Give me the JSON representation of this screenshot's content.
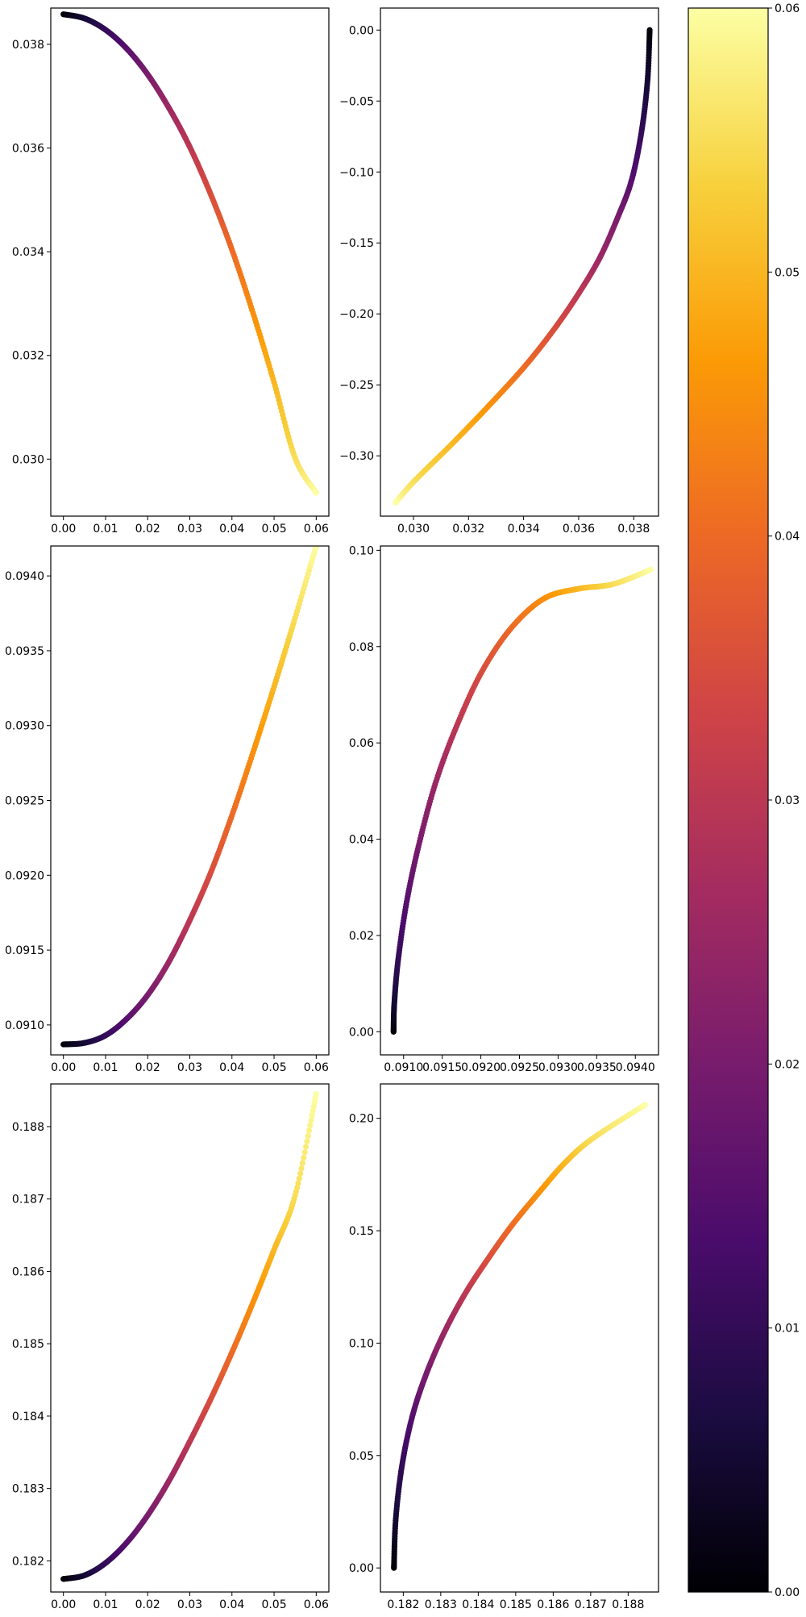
{
  "colormap": {
    "name": "inferno",
    "stops": [
      "#000004",
      "#1b0c41",
      "#4a0c6b",
      "#781c6d",
      "#a52c60",
      "#cf4446",
      "#ed6925",
      "#fb9b06",
      "#f7d13d",
      "#fcffa4"
    ]
  },
  "colorbar": {
    "range": [
      0,
      0.06
    ],
    "ticks": [
      0.0,
      0.01,
      0.02,
      0.03,
      0.04,
      0.05,
      0.06
    ],
    "tick_labels": [
      "0.00",
      "0.01",
      "0.02",
      "0.03",
      "0.04",
      "0.05",
      "0.06"
    ]
  },
  "chart_data": [
    {
      "type": "scatter",
      "title": "",
      "xlabel": "",
      "ylabel": "",
      "xlim": [
        -0.003,
        0.063
      ],
      "ylim": [
        0.0289,
        0.0387
      ],
      "xticks": [
        0.0,
        0.01,
        0.02,
        0.03,
        0.04,
        0.05,
        0.06
      ],
      "xtick_labels": [
        "0.00",
        "0.01",
        "0.02",
        "0.03",
        "0.04",
        "0.05",
        "0.06"
      ],
      "yticks": [
        0.03,
        0.032,
        0.034,
        0.036,
        0.038
      ],
      "ytick_labels": [
        "0.030",
        "0.032",
        "0.034",
        "0.036",
        "0.038"
      ],
      "points": [
        {
          "x": 0.0,
          "y": 0.03858,
          "c": 0.0
        },
        {
          "x": 0.005,
          "y": 0.0385,
          "c": 0.005
        },
        {
          "x": 0.01,
          "y": 0.03828,
          "c": 0.01
        },
        {
          "x": 0.015,
          "y": 0.03792,
          "c": 0.015
        },
        {
          "x": 0.02,
          "y": 0.03742,
          "c": 0.02
        },
        {
          "x": 0.025,
          "y": 0.03678,
          "c": 0.025
        },
        {
          "x": 0.03,
          "y": 0.03602,
          "c": 0.03
        },
        {
          "x": 0.035,
          "y": 0.0351,
          "c": 0.035
        },
        {
          "x": 0.04,
          "y": 0.03404,
          "c": 0.04
        },
        {
          "x": 0.045,
          "y": 0.03282,
          "c": 0.045
        },
        {
          "x": 0.05,
          "y": 0.03148,
          "c": 0.05
        },
        {
          "x": 0.055,
          "y": 0.03002,
          "c": 0.055
        },
        {
          "x": 0.06,
          "y": 0.02935,
          "c": 0.06
        }
      ]
    },
    {
      "type": "scatter",
      "title": "",
      "xlabel": "",
      "ylabel": "",
      "xlim": [
        0.0288,
        0.0389
      ],
      "ylim": [
        -0.3425,
        0.0155
      ],
      "xticks": [
        0.03,
        0.032,
        0.034,
        0.036,
        0.038
      ],
      "xtick_labels": [
        "0.030",
        "0.032",
        "0.034",
        "0.036",
        "0.038"
      ],
      "yticks": [
        0.0,
        -0.05,
        -0.1,
        -0.15,
        -0.2,
        -0.25,
        -0.3
      ],
      "ytick_labels": [
        "0.00",
        "−0.05",
        "−0.10",
        "−0.15",
        "−0.20",
        "−0.25",
        "−0.30"
      ],
      "points": [
        {
          "x": 0.03858,
          "y": 0.0,
          "c": 0.0
        },
        {
          "x": 0.0385,
          "y": -0.036,
          "c": 0.005
        },
        {
          "x": 0.03828,
          "y": -0.072,
          "c": 0.01
        },
        {
          "x": 0.03792,
          "y": -0.106,
          "c": 0.015
        },
        {
          "x": 0.03742,
          "y": -0.132,
          "c": 0.02
        },
        {
          "x": 0.03678,
          "y": -0.16,
          "c": 0.025
        },
        {
          "x": 0.03602,
          "y": -0.185,
          "c": 0.03
        },
        {
          "x": 0.0351,
          "y": -0.211,
          "c": 0.035
        },
        {
          "x": 0.03404,
          "y": -0.237,
          "c": 0.04
        },
        {
          "x": 0.03282,
          "y": -0.263,
          "c": 0.045
        },
        {
          "x": 0.03148,
          "y": -0.29,
          "c": 0.05
        },
        {
          "x": 0.03002,
          "y": -0.318,
          "c": 0.055
        },
        {
          "x": 0.02935,
          "y": -0.333,
          "c": 0.06
        }
      ]
    },
    {
      "type": "scatter",
      "title": "",
      "xlabel": "",
      "ylabel": "",
      "xlim": [
        -0.003,
        0.063
      ],
      "ylim": [
        0.0908,
        0.0942
      ],
      "xticks": [
        0.0,
        0.01,
        0.02,
        0.03,
        0.04,
        0.05,
        0.06
      ],
      "xtick_labels": [
        "0.00",
        "0.01",
        "0.02",
        "0.03",
        "0.04",
        "0.05",
        "0.06"
      ],
      "yticks": [
        0.091,
        0.0915,
        0.092,
        0.0925,
        0.093,
        0.0935,
        0.094
      ],
      "ytick_labels": [
        "0.0910",
        "0.0915",
        "0.0920",
        "0.0925",
        "0.0930",
        "0.0935",
        "0.0940"
      ],
      "points": [
        {
          "x": 0.0,
          "y": 0.09087,
          "c": 0.0
        },
        {
          "x": 0.005,
          "y": 0.09088,
          "c": 0.005
        },
        {
          "x": 0.01,
          "y": 0.09093,
          "c": 0.01
        },
        {
          "x": 0.015,
          "y": 0.09104,
          "c": 0.015
        },
        {
          "x": 0.02,
          "y": 0.0912,
          "c": 0.02
        },
        {
          "x": 0.025,
          "y": 0.09142,
          "c": 0.025
        },
        {
          "x": 0.03,
          "y": 0.0917,
          "c": 0.03
        },
        {
          "x": 0.035,
          "y": 0.09202,
          "c": 0.035
        },
        {
          "x": 0.04,
          "y": 0.0924,
          "c": 0.04
        },
        {
          "x": 0.045,
          "y": 0.09282,
          "c": 0.045
        },
        {
          "x": 0.05,
          "y": 0.09326,
          "c": 0.05
        },
        {
          "x": 0.055,
          "y": 0.09372,
          "c": 0.055
        },
        {
          "x": 0.06,
          "y": 0.0942,
          "c": 0.06
        }
      ]
    },
    {
      "type": "scatter",
      "title": "",
      "xlabel": "",
      "ylabel": "",
      "xlim": [
        0.0907,
        0.0943
      ],
      "ylim": [
        -0.0048,
        0.1009
      ],
      "xticks": [
        0.091,
        0.0915,
        0.092,
        0.0925,
        0.093,
        0.0935,
        0.094
      ],
      "xtick_labels": [
        "0.0910",
        "0.0915",
        "0.0920",
        "0.0925",
        "0.0930",
        "0.0935",
        "0.0940"
      ],
      "yticks": [
        0.0,
        0.02,
        0.04,
        0.06,
        0.08,
        0.1
      ],
      "ytick_labels": [
        "0.00",
        "0.02",
        "0.04",
        "0.06",
        "0.08",
        "0.10"
      ],
      "points": [
        {
          "x": 0.09087,
          "y": 0.0,
          "c": 0.0
        },
        {
          "x": 0.09088,
          "y": 0.006,
          "c": 0.005
        },
        {
          "x": 0.09093,
          "y": 0.015,
          "c": 0.01
        },
        {
          "x": 0.09104,
          "y": 0.027,
          "c": 0.015
        },
        {
          "x": 0.0912,
          "y": 0.039,
          "c": 0.02
        },
        {
          "x": 0.09142,
          "y": 0.052,
          "c": 0.025
        },
        {
          "x": 0.0917,
          "y": 0.064,
          "c": 0.03
        },
        {
          "x": 0.09202,
          "y": 0.075,
          "c": 0.035
        },
        {
          "x": 0.0924,
          "y": 0.084,
          "c": 0.04
        },
        {
          "x": 0.09282,
          "y": 0.09,
          "c": 0.045
        },
        {
          "x": 0.09326,
          "y": 0.092,
          "c": 0.05
        },
        {
          "x": 0.09372,
          "y": 0.093,
          "c": 0.055
        },
        {
          "x": 0.0942,
          "y": 0.096,
          "c": 0.06
        }
      ]
    },
    {
      "type": "scatter",
      "title": "",
      "xlabel": "",
      "ylabel": "",
      "xlim": [
        -0.003,
        0.063
      ],
      "ylim": [
        0.18157,
        0.18859
      ],
      "xticks": [
        0.0,
        0.01,
        0.02,
        0.03,
        0.04,
        0.05,
        0.06
      ],
      "xtick_labels": [
        "0.00",
        "0.01",
        "0.02",
        "0.03",
        "0.04",
        "0.05",
        "0.06"
      ],
      "yticks": [
        0.182,
        0.183,
        0.184,
        0.185,
        0.186,
        0.187,
        0.188
      ],
      "ytick_labels": [
        "0.182",
        "0.183",
        "0.184",
        "0.185",
        "0.186",
        "0.187",
        "0.188"
      ],
      "points": [
        {
          "x": 0.0,
          "y": 0.18175,
          "c": 0.0
        },
        {
          "x": 0.005,
          "y": 0.1818,
          "c": 0.005
        },
        {
          "x": 0.01,
          "y": 0.18197,
          "c": 0.01
        },
        {
          "x": 0.015,
          "y": 0.18225,
          "c": 0.015
        },
        {
          "x": 0.02,
          "y": 0.18263,
          "c": 0.02
        },
        {
          "x": 0.025,
          "y": 0.1831,
          "c": 0.025
        },
        {
          "x": 0.03,
          "y": 0.18365,
          "c": 0.03
        },
        {
          "x": 0.035,
          "y": 0.18424,
          "c": 0.035
        },
        {
          "x": 0.04,
          "y": 0.18488,
          "c": 0.04
        },
        {
          "x": 0.045,
          "y": 0.18557,
          "c": 0.045
        },
        {
          "x": 0.05,
          "y": 0.1863,
          "c": 0.05
        },
        {
          "x": 0.055,
          "y": 0.18705,
          "c": 0.055
        },
        {
          "x": 0.06,
          "y": 0.18845,
          "c": 0.06
        }
      ]
    },
    {
      "type": "scatter",
      "title": "",
      "xlabel": "",
      "ylabel": "",
      "xlim": [
        0.18139,
        0.18881
      ],
      "ylim": [
        -0.0107,
        0.2153
      ],
      "xticks": [
        0.182,
        0.183,
        0.184,
        0.185,
        0.186,
        0.187,
        0.188
      ],
      "xtick_labels": [
        "0.182",
        "0.183",
        "0.184",
        "0.185",
        "0.186",
        "0.187",
        "0.188"
      ],
      "yticks": [
        0.0,
        0.05,
        0.1,
        0.15,
        0.2
      ],
      "ytick_labels": [
        "0.00",
        "0.05",
        "0.10",
        "0.15",
        "0.20"
      ],
      "points": [
        {
          "x": 0.18175,
          "y": 0.0,
          "c": 0.0
        },
        {
          "x": 0.1818,
          "y": 0.022,
          "c": 0.005
        },
        {
          "x": 0.18197,
          "y": 0.046,
          "c": 0.01
        },
        {
          "x": 0.18225,
          "y": 0.068,
          "c": 0.015
        },
        {
          "x": 0.18263,
          "y": 0.087,
          "c": 0.02
        },
        {
          "x": 0.1831,
          "y": 0.105,
          "c": 0.025
        },
        {
          "x": 0.18365,
          "y": 0.122,
          "c": 0.03
        },
        {
          "x": 0.18424,
          "y": 0.137,
          "c": 0.035
        },
        {
          "x": 0.18488,
          "y": 0.152,
          "c": 0.04
        },
        {
          "x": 0.18557,
          "y": 0.166,
          "c": 0.045
        },
        {
          "x": 0.1863,
          "y": 0.18,
          "c": 0.05
        },
        {
          "x": 0.18705,
          "y": 0.191,
          "c": 0.055
        },
        {
          "x": 0.18845,
          "y": 0.206,
          "c": 0.06
        }
      ]
    }
  ]
}
